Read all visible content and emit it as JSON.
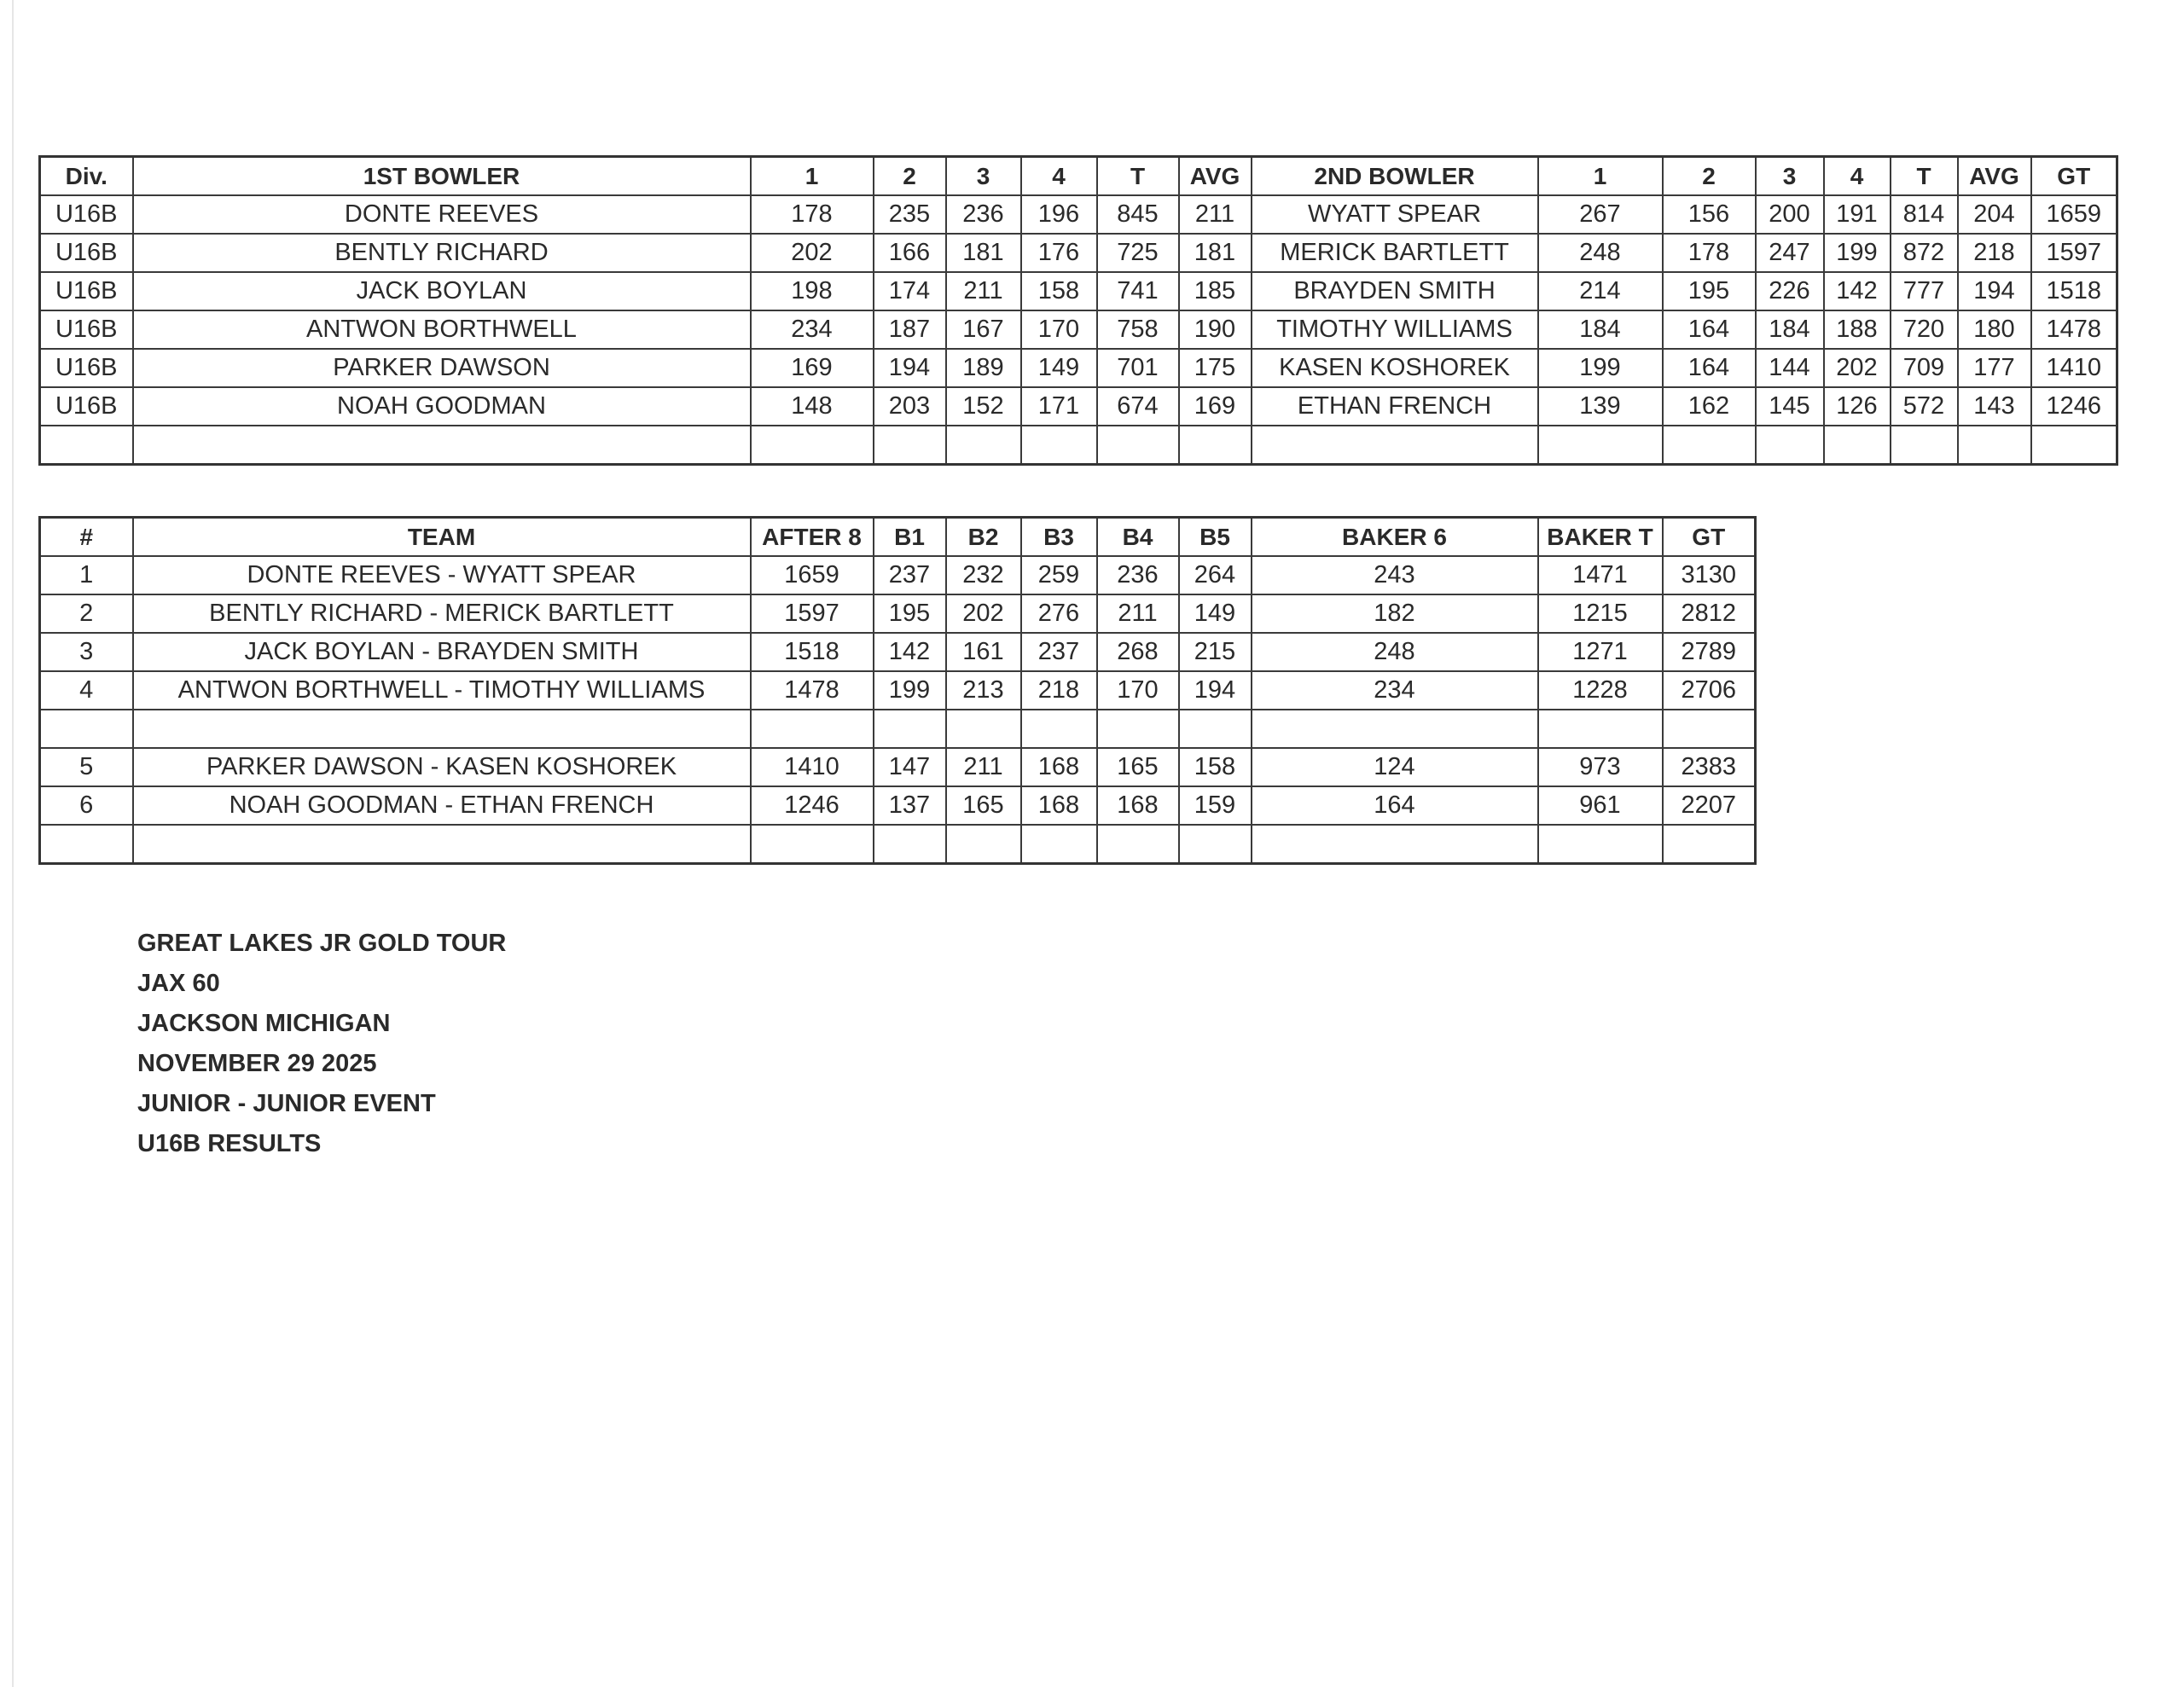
{
  "results_table": {
    "headers": [
      "Div.",
      "1ST BOWLER",
      "1",
      "2",
      "3",
      "4",
      "T",
      "AVG",
      "2ND BOWLER",
      "1",
      "2",
      "3",
      "4",
      "T",
      "AVG",
      "GT"
    ],
    "rows": [
      [
        "U16B",
        "DONTE REEVES",
        "178",
        "235",
        "236",
        "196",
        "845",
        "211",
        "WYATT SPEAR",
        "267",
        "156",
        "200",
        "191",
        "814",
        "204",
        "1659"
      ],
      [
        "U16B",
        "BENTLY RICHARD",
        "202",
        "166",
        "181",
        "176",
        "725",
        "181",
        "MERICK BARTLETT",
        "248",
        "178",
        "247",
        "199",
        "872",
        "218",
        "1597"
      ],
      [
        "U16B",
        "JACK BOYLAN",
        "198",
        "174",
        "211",
        "158",
        "741",
        "185",
        "BRAYDEN SMITH",
        "214",
        "195",
        "226",
        "142",
        "777",
        "194",
        "1518"
      ],
      [
        "U16B",
        "ANTWON BORTHWELL",
        "234",
        "187",
        "167",
        "170",
        "758",
        "190",
        "TIMOTHY WILLIAMS",
        "184",
        "164",
        "184",
        "188",
        "720",
        "180",
        "1478"
      ],
      [
        "U16B",
        "PARKER DAWSON",
        "169",
        "194",
        "189",
        "149",
        "701",
        "175",
        "KASEN KOSHOREK",
        "199",
        "164",
        "144",
        "202",
        "709",
        "177",
        "1410"
      ],
      [
        "U16B",
        "NOAH GOODMAN",
        "148",
        "203",
        "152",
        "171",
        "674",
        "169",
        "ETHAN FRENCH",
        "139",
        "162",
        "145",
        "126",
        "572",
        "143",
        "1246"
      ],
      [
        "",
        "",
        "",
        "",
        "",
        "",
        "",
        "",
        "",
        "",
        "",
        "",
        "",
        "",
        "",
        ""
      ]
    ]
  },
  "baker_table": {
    "headers": [
      "#",
      "TEAM",
      "AFTER 8",
      "B1",
      "B2",
      "B3",
      "B4",
      "B5",
      "BAKER 6",
      "BAKER T",
      "GT"
    ],
    "rows": [
      [
        "1",
        "DONTE REEVES - WYATT SPEAR",
        "1659",
        "237",
        "232",
        "259",
        "236",
        "264",
        "243",
        "1471",
        "3130"
      ],
      [
        "2",
        "BENTLY RICHARD - MERICK BARTLETT",
        "1597",
        "195",
        "202",
        "276",
        "211",
        "149",
        "182",
        "1215",
        "2812"
      ],
      [
        "3",
        "JACK BOYLAN - BRAYDEN SMITH",
        "1518",
        "142",
        "161",
        "237",
        "268",
        "215",
        "248",
        "1271",
        "2789"
      ],
      [
        "4",
        "ANTWON BORTHWELL - TIMOTHY WILLIAMS",
        "1478",
        "199",
        "213",
        "218",
        "170",
        "194",
        "234",
        "1228",
        "2706"
      ],
      [
        "",
        "",
        "",
        "",
        "",
        "",
        "",
        "",
        "",
        "",
        ""
      ],
      [
        "5",
        "PARKER DAWSON - KASEN KOSHOREK",
        "1410",
        "147",
        "211",
        "168",
        "165",
        "158",
        "124",
        "973",
        "2383"
      ],
      [
        "6",
        "NOAH GOODMAN - ETHAN FRENCH",
        "1246",
        "137",
        "165",
        "168",
        "168",
        "159",
        "164",
        "961",
        "2207"
      ],
      [
        "",
        "",
        "",
        "",
        "",
        "",
        "",
        "",
        "",
        "",
        ""
      ]
    ]
  },
  "event_info": [
    "GREAT LAKES JR GOLD TOUR",
    "JAX 60",
    "JACKSON MICHIGAN",
    "NOVEMBER 29 2025",
    "JUNIOR - JUNIOR EVENT",
    "U16B RESULTS"
  ]
}
